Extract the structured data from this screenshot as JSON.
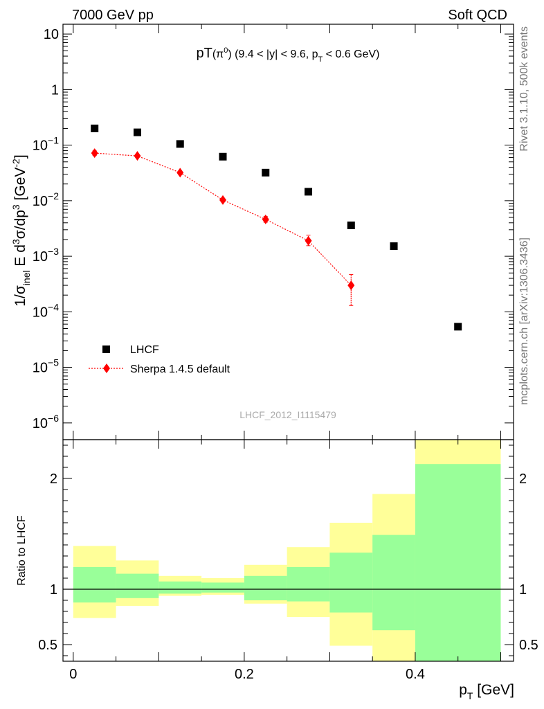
{
  "header": {
    "left": "7000 GeV pp",
    "right": "Soft QCD"
  },
  "side_labels": {
    "rivet": "Rivet 3.1.10,  500k events",
    "mcplots": "mcplots.cern.ch [arXiv:1306.3436]"
  },
  "watermark": "LHCF_2012_I1115479",
  "chart_data": [
    {
      "type": "scatter",
      "title": "pT(π⁰) (9.4 < |y| < 9.6, pT < 0.6 GeV)",
      "ylabel": "1/σ_inel E d³σ/dp³ [GeV⁻²]",
      "yscale": "log",
      "xlim": [
        -0.012,
        0.515
      ],
      "ylim": [
        5e-07,
        15
      ],
      "yticks": [
        1e-06,
        1e-05,
        0.0001,
        0.001,
        0.01,
        0.1,
        1,
        10
      ],
      "yticklabels": [
        "10^-6",
        "10^-5",
        "10^-4",
        "10^-3",
        "10^-2",
        "10^-1",
        "1",
        "10"
      ],
      "legend_position": "bottom-left",
      "series": [
        {
          "name": "LHCF",
          "color": "#000000",
          "marker": "square",
          "x": [
            0.025,
            0.075,
            0.125,
            0.175,
            0.225,
            0.275,
            0.325,
            0.375,
            0.45
          ],
          "y": [
            0.2,
            0.17,
            0.105,
            0.062,
            0.032,
            0.0145,
            0.0036,
            0.00152,
            5.4e-05
          ]
        },
        {
          "name": "Sherpa 1.4.5 default",
          "color": "#ff0000",
          "marker": "diamond",
          "line": "dotted",
          "x": [
            0.025,
            0.075,
            0.125,
            0.175,
            0.225,
            0.275,
            0.325
          ],
          "y": [
            0.072,
            0.064,
            0.032,
            0.0103,
            0.0046,
            0.0019,
            0.0003
          ],
          "yerr_low": [
            0.065,
            0.06,
            0.03,
            0.0096,
            0.0041,
            0.00155,
            0.00013
          ],
          "yerr_high": [
            0.079,
            0.068,
            0.034,
            0.011,
            0.0052,
            0.0024,
            0.00047
          ]
        }
      ]
    },
    {
      "type": "area",
      "xlabel": "p_T [GeV]",
      "ylabel": "Ratio to LHCF",
      "xlim": [
        -0.012,
        0.515
      ],
      "ylim": [
        0.35,
        2.35
      ],
      "xticks": [
        0,
        0.2,
        0.4
      ],
      "xticklabels": [
        "0",
        "0.2",
        "0.4"
      ],
      "yticks": [
        0.5,
        1,
        2
      ],
      "yticklabels": [
        "0.5",
        "1",
        "2"
      ],
      "reference_line": 1,
      "bins": [
        0,
        0.05,
        0.1,
        0.15,
        0.2,
        0.25,
        0.3,
        0.35,
        0.4,
        0.5
      ],
      "bands": [
        {
          "name": "total uncertainty",
          "color": "#ffff99",
          "low": [
            0.74,
            0.85,
            0.94,
            0.95,
            0.87,
            0.75,
            0.49,
            0.35,
            0.35
          ],
          "high": [
            1.39,
            1.26,
            1.12,
            1.1,
            1.22,
            1.38,
            1.6,
            1.86,
            2.35
          ]
        },
        {
          "name": "stat uncertainty",
          "color": "#99ff99",
          "low": [
            0.88,
            0.92,
            0.96,
            0.97,
            0.9,
            0.89,
            0.79,
            0.63,
            0.35
          ],
          "high": [
            1.2,
            1.14,
            1.07,
            1.06,
            1.12,
            1.2,
            1.33,
            1.49,
            2.13
          ]
        }
      ]
    }
  ]
}
